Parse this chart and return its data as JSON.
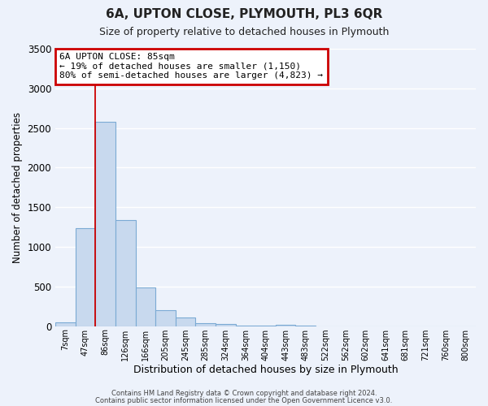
{
  "title": "6A, UPTON CLOSE, PLYMOUTH, PL3 6QR",
  "subtitle": "Size of property relative to detached houses in Plymouth",
  "xlabel": "Distribution of detached houses by size in Plymouth",
  "ylabel": "Number of detached properties",
  "bar_color": "#c8d9ee",
  "bar_edge_color": "#7baad4",
  "background_color": "#edf2fb",
  "grid_color": "#ffffff",
  "categories": [
    "7sqm",
    "47sqm",
    "86sqm",
    "126sqm",
    "166sqm",
    "205sqm",
    "245sqm",
    "285sqm",
    "324sqm",
    "364sqm",
    "404sqm",
    "443sqm",
    "483sqm",
    "522sqm",
    "562sqm",
    "602sqm",
    "641sqm",
    "681sqm",
    "721sqm",
    "760sqm",
    "800sqm"
  ],
  "values": [
    50,
    1240,
    2580,
    1340,
    490,
    200,
    110,
    40,
    30,
    10,
    5,
    20,
    5,
    0,
    0,
    0,
    0,
    0,
    0,
    0,
    0
  ],
  "ylim": [
    0,
    3500
  ],
  "yticks": [
    0,
    500,
    1000,
    1500,
    2000,
    2500,
    3000,
    3500
  ],
  "red_line_index": 2,
  "annotation_title": "6A UPTON CLOSE: 85sqm",
  "annotation_line1": "← 19% of detached houses are smaller (1,150)",
  "annotation_line2": "80% of semi-detached houses are larger (4,823) →",
  "annotation_box_color": "#ffffff",
  "annotation_box_edge": "#cc0000",
  "footer1": "Contains HM Land Registry data © Crown copyright and database right 2024.",
  "footer2": "Contains public sector information licensed under the Open Government Licence v3.0."
}
